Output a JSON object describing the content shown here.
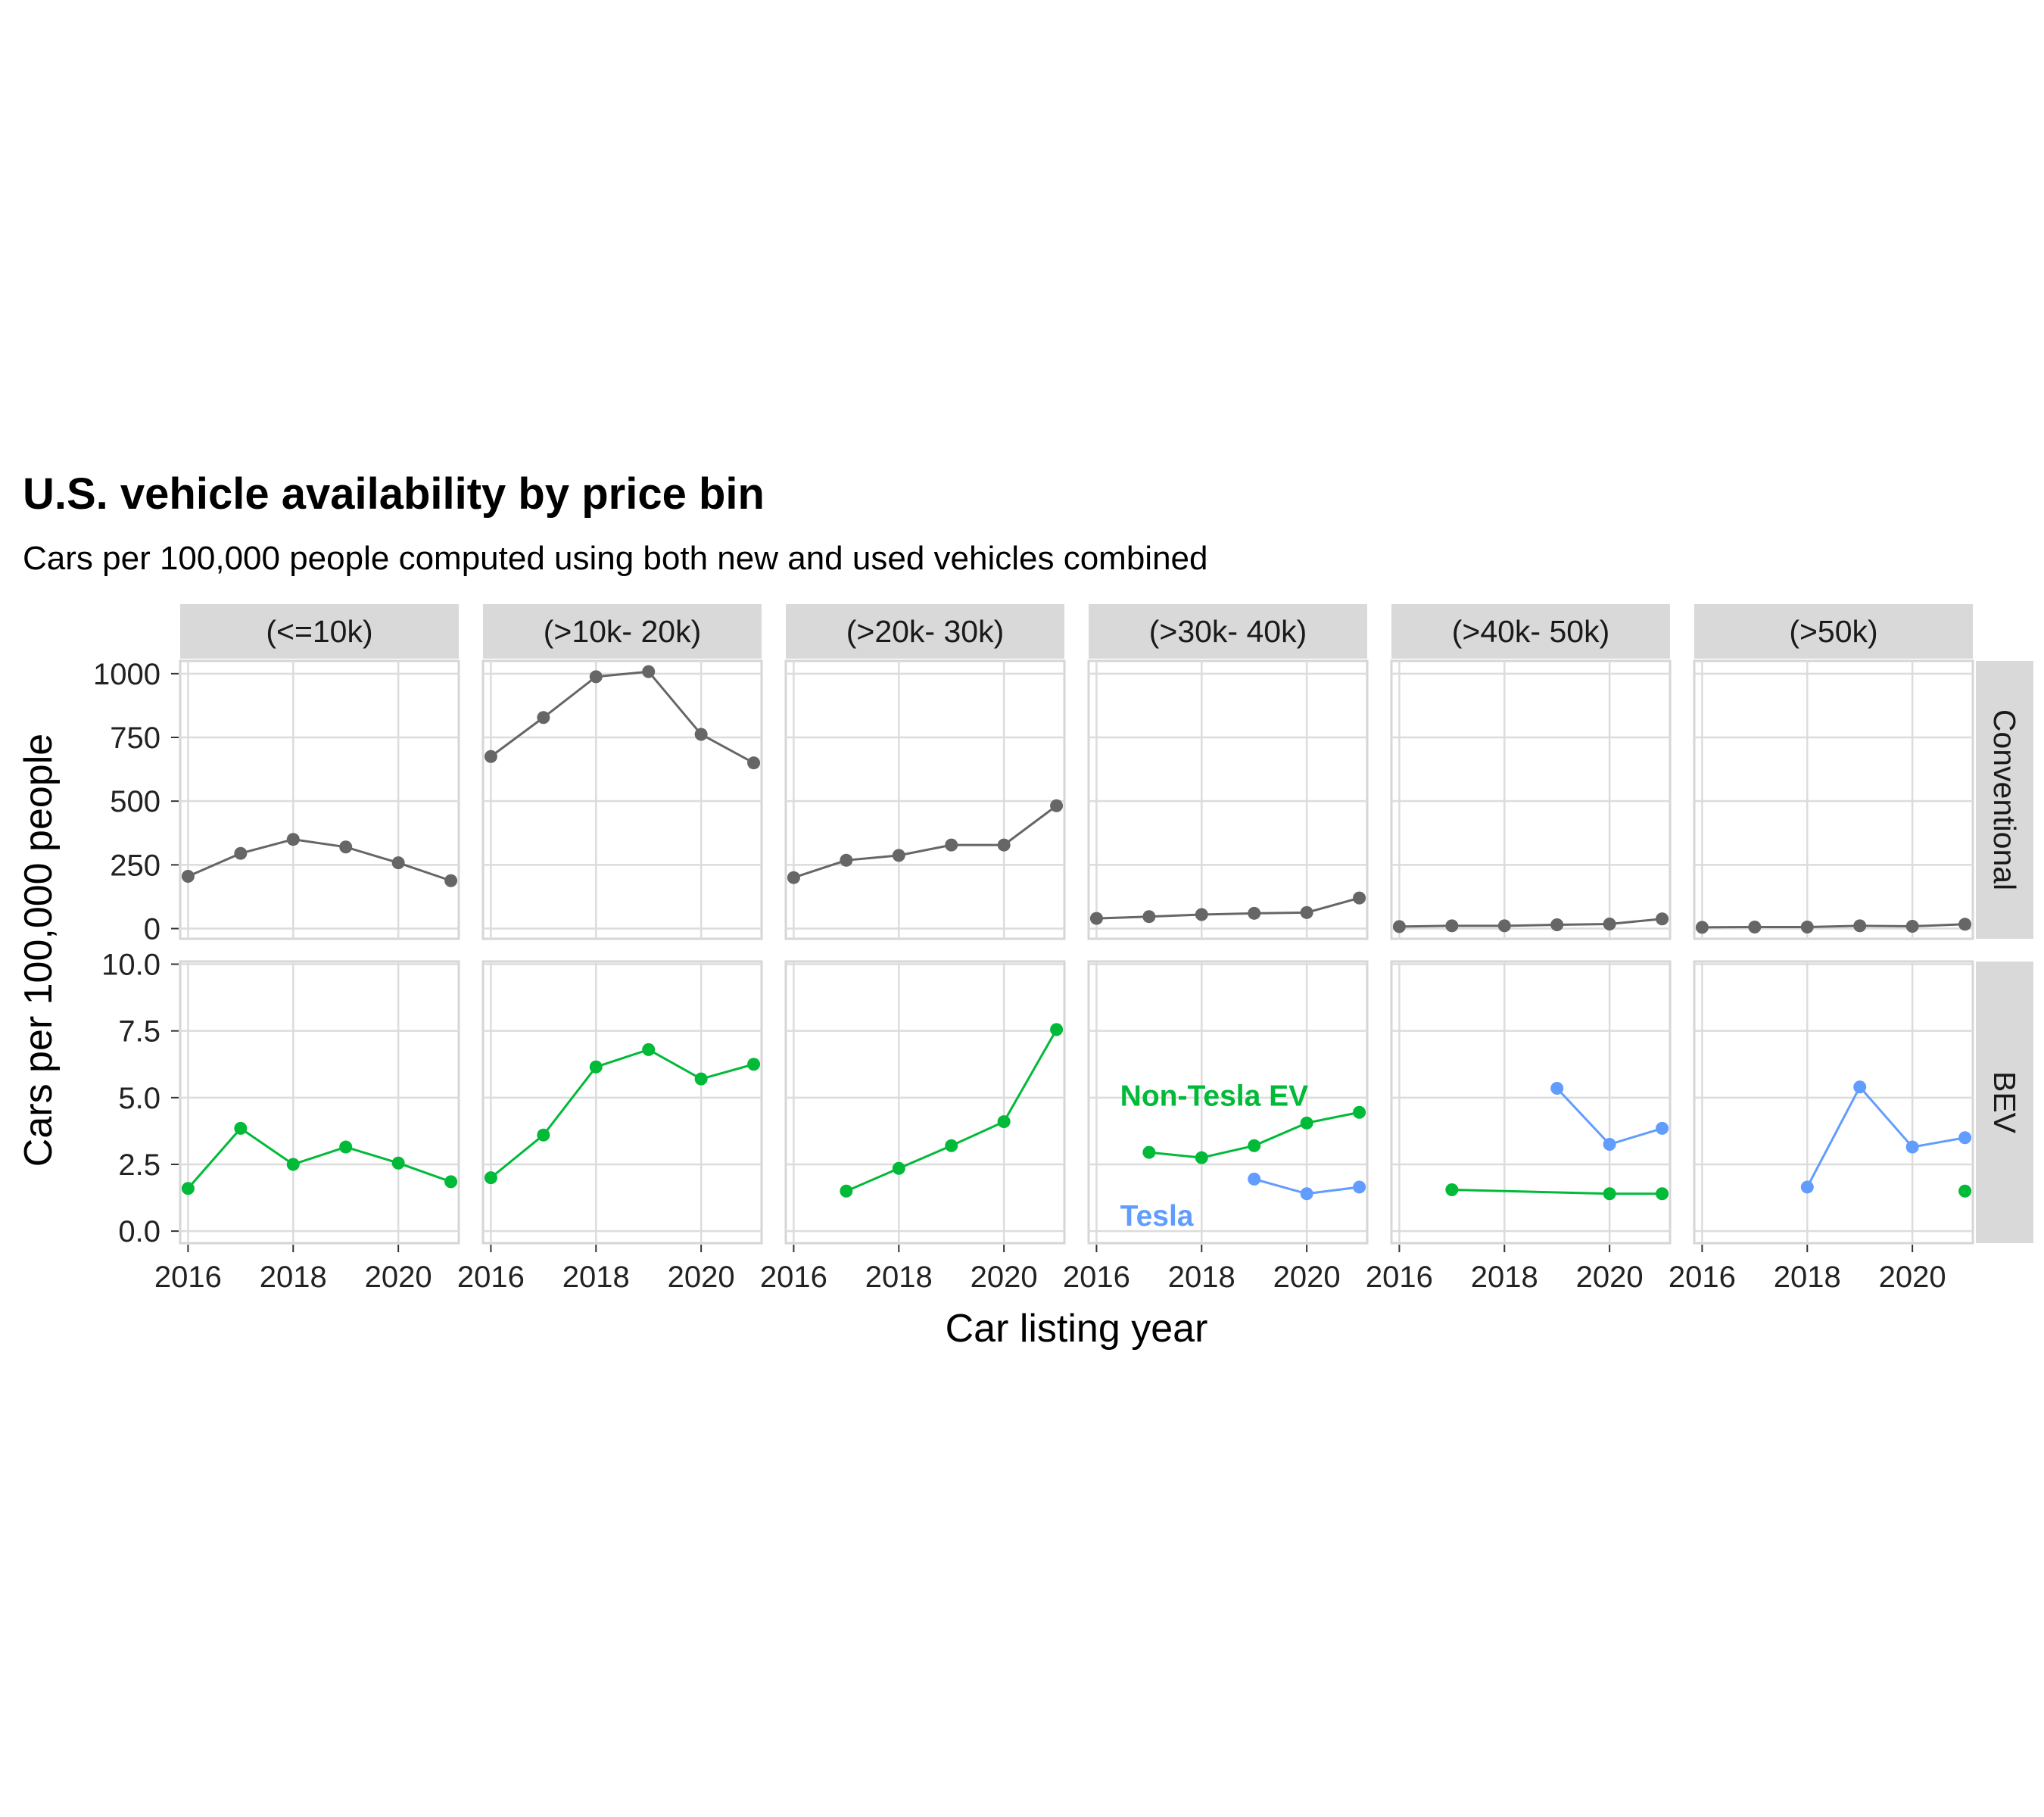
{
  "chart_data": {
    "type": "line",
    "title": "U.S. vehicle availability by price bin",
    "subtitle": "Cars per 100,000 people computed using both new and used vehicles combined",
    "xlabel": "Car listing year",
    "ylabel": "Cars per 100,000 people",
    "grid": true,
    "columns": [
      "(<=10k)",
      "(>10k- 20k)",
      "(>20k- 30k)",
      "(>30k- 40k)",
      "(>40k- 50k)",
      "(>50k)"
    ],
    "rows": [
      "Conventional",
      "BEV"
    ],
    "xlim": [
      2015.85,
      2021.15
    ],
    "x_ticks": [
      2016,
      2018,
      2020
    ],
    "x_tick_labels": [
      "2016",
      "2018",
      "2020"
    ],
    "panels": {
      "Conventional": {
        "ylim": [
          -40,
          1050
        ],
        "y_ticks": [
          0,
          250,
          500,
          750,
          1000
        ],
        "y_tick_labels": [
          "0",
          "250",
          "500",
          "750",
          "1000"
        ],
        "series": [
          {
            "color": "#666666",
            "data": [
              {
                "x": [
                  2016,
                  2017,
                  2018,
                  2019,
                  2020,
                  2021
                ],
                "y": [
                  205,
                  295,
                  350,
                  320,
                  258,
                  188
                ]
              },
              {
                "x": [
                  2016,
                  2017,
                  2018,
                  2019,
                  2020,
                  2021
                ],
                "y": [
                  675,
                  828,
                  988,
                  1008,
                  762,
                  650
                ]
              },
              {
                "x": [
                  2016,
                  2017,
                  2018,
                  2019,
                  2020,
                  2021
                ],
                "y": [
                  200,
                  268,
                  287,
                  328,
                  328,
                  482
                ]
              },
              {
                "x": [
                  2016,
                  2017,
                  2018,
                  2019,
                  2020,
                  2021
                ],
                "y": [
                  40,
                  47,
                  55,
                  60,
                  63,
                  120
                ]
              },
              {
                "x": [
                  2016,
                  2017,
                  2018,
                  2019,
                  2020,
                  2021
                ],
                "y": [
                  8,
                  11,
                  11,
                  15,
                  18,
                  38
                ]
              },
              {
                "x": [
                  2016,
                  2017,
                  2018,
                  2019,
                  2020,
                  2021
                ],
                "y": [
                  5,
                  6,
                  6,
                  11,
                  9,
                  17
                ]
              }
            ]
          }
        ]
      },
      "BEV": {
        "ylim": [
          -0.45,
          10.1
        ],
        "y_ticks": [
          0,
          2.5,
          5,
          7.5,
          10
        ],
        "y_tick_labels": [
          "0.0",
          "2.5",
          "5.0",
          "7.5",
          "10.0"
        ],
        "series": [
          {
            "color": "#00BA38",
            "data": [
              {
                "x": [
                  2016,
                  2017,
                  2018,
                  2019,
                  2020,
                  2021
                ],
                "y": [
                  1.6,
                  3.85,
                  2.5,
                  3.15,
                  2.55,
                  1.85
                ]
              },
              {
                "x": [
                  2016,
                  2017,
                  2018,
                  2019,
                  2020,
                  2021
                ],
                "y": [
                  2.0,
                  3.6,
                  6.15,
                  6.8,
                  5.7,
                  6.25
                ]
              },
              {
                "x": [
                  2017,
                  2018,
                  2019,
                  2020,
                  2021
                ],
                "y": [
                  1.5,
                  2.35,
                  3.2,
                  4.1,
                  7.55
                ]
              },
              {
                "x": [
                  2017,
                  2018,
                  2019,
                  2020,
                  2021
                ],
                "y": [
                  2.95,
                  2.75,
                  3.2,
                  4.05,
                  4.45
                ]
              },
              {
                "x": [
                  2017,
                  2020,
                  2021
                ],
                "y": [
                  1.55,
                  1.4,
                  1.4
                ]
              },
              {
                "x": [
                  2021
                ],
                "y": [
                  1.5
                ]
              }
            ]
          },
          {
            "color": "#619CFF",
            "data": [
              {
                "x": [],
                "y": []
              },
              {
                "x": [],
                "y": []
              },
              {
                "x": [],
                "y": []
              },
              {
                "x": [
                  2019,
                  2020,
                  2021
                ],
                "y": [
                  1.95,
                  1.4,
                  1.65
                ]
              },
              {
                "x": [
                  2019,
                  2020,
                  2021
                ],
                "y": [
                  5.35,
                  3.25,
                  3.85
                ]
              },
              {
                "x": [
                  2018,
                  2019,
                  2020,
                  2021
                ],
                "y": [
                  1.65,
                  5.4,
                  3.15,
                  3.5
                ]
              }
            ]
          }
        ],
        "annotations": [
          {
            "text": "Non-Tesla EV",
            "color": "#00BA38",
            "column": 3,
            "x": 2016.45,
            "y": 5.1
          },
          {
            "text": "Tesla",
            "color": "#619CFF",
            "column": 3,
            "x": 2016.45,
            "y": 0.6
          }
        ]
      }
    }
  }
}
